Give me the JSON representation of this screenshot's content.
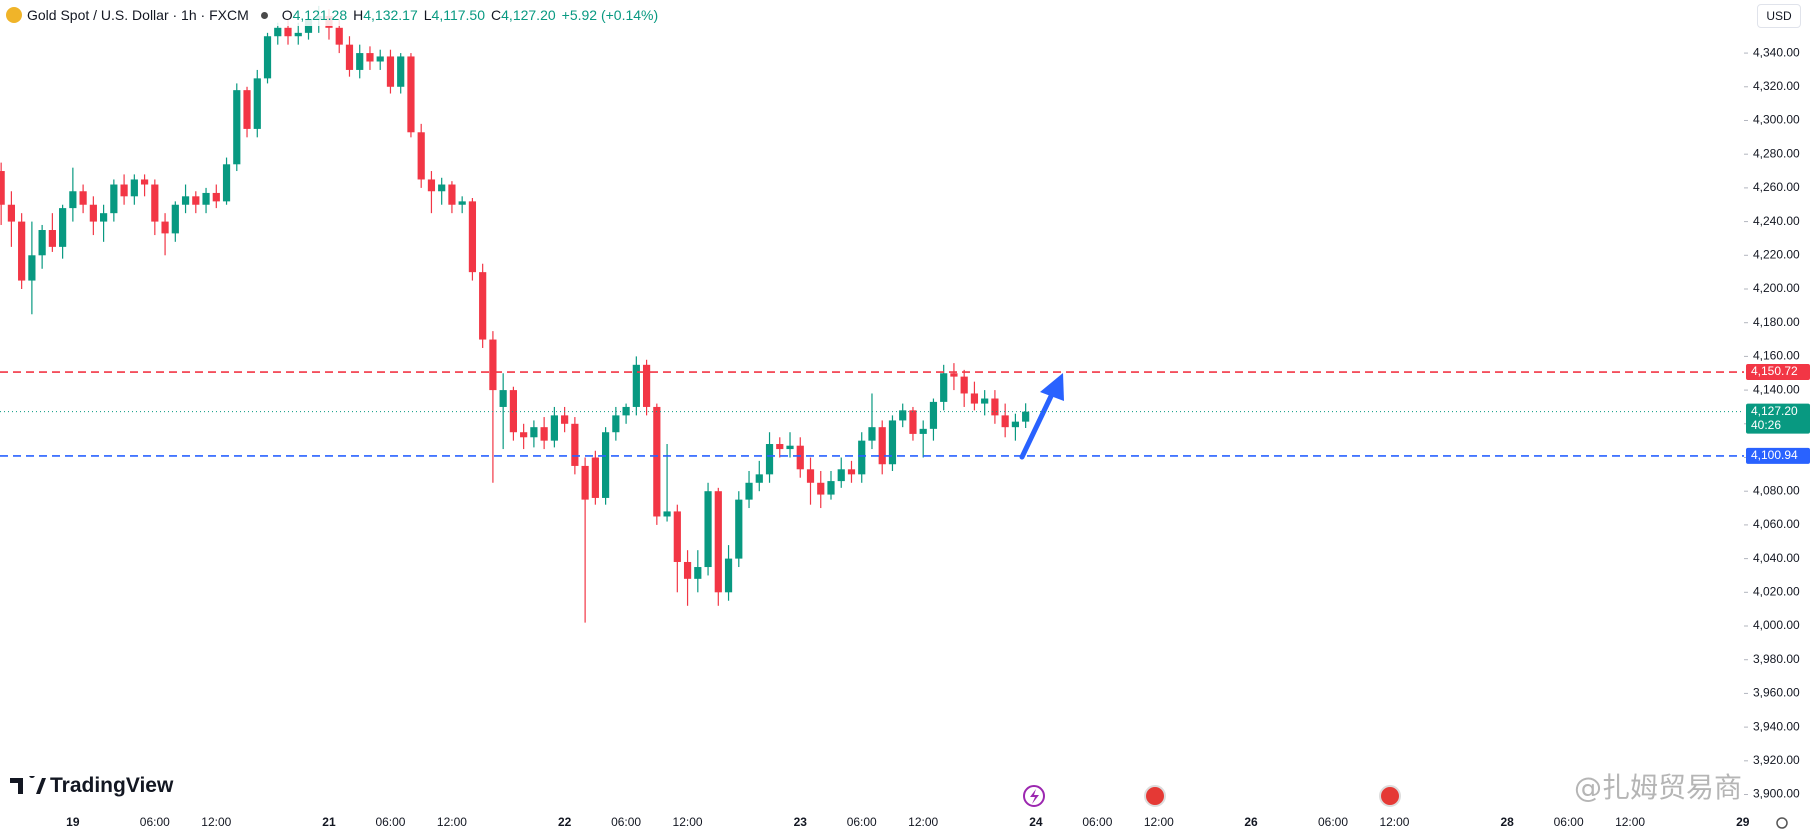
{
  "header": {
    "symbol": "Gold Spot / U.S. Dollar · 1h · FXCM",
    "open_label": "O",
    "open": "4,121.28",
    "high_label": "H",
    "high": "4,132.17",
    "low_label": "L",
    "low": "4,117.50",
    "close_label": "C",
    "close": "4,127.20",
    "change": "+5.92 (+0.14%)",
    "currency": "USD"
  },
  "branding": {
    "logo": "TradingView",
    "watermark": "@扎姆贸易商"
  },
  "chart_data": {
    "type": "candlestick",
    "up_color": "#089981",
    "down_color": "#f23645",
    "categories": [
      null,
      null,
      null,
      null,
      null,
      null,
      null,
      "19",
      null,
      null,
      null,
      null,
      null,
      null,
      null,
      "06:00",
      null,
      null,
      null,
      null,
      null,
      "12:00",
      null,
      null,
      null,
      null,
      null,
      null,
      null,
      null,
      null,
      null,
      "21",
      null,
      null,
      null,
      null,
      null,
      "06:00",
      null,
      null,
      null,
      null,
      null,
      "12:00",
      null,
      null,
      null,
      null,
      null,
      null,
      null,
      null,
      null,
      null,
      "22",
      null,
      null,
      null,
      null,
      null,
      "06:00",
      null,
      null,
      null,
      null,
      null,
      "12:00",
      null,
      null,
      null,
      null,
      null,
      null,
      null,
      null,
      null,
      null,
      "23",
      null,
      null,
      null,
      null,
      null,
      "06:00",
      null,
      null,
      null,
      null,
      null,
      "12:00",
      null,
      null,
      null,
      null,
      null,
      null,
      null,
      null,
      null,
      null,
      "24",
      null,
      null,
      null,
      null,
      null,
      "06:00",
      null,
      null,
      null,
      null,
      null,
      "12:00",
      null,
      null,
      null,
      null,
      null,
      null,
      null,
      null,
      "26",
      null,
      null,
      null,
      null,
      null,
      null,
      null,
      "06:00",
      null,
      null,
      null,
      null,
      null,
      "12:00",
      null,
      null,
      null,
      null,
      null,
      null,
      null,
      null,
      null,
      null,
      "28",
      null,
      null,
      null,
      null,
      null,
      "06:00",
      null,
      null,
      null,
      null,
      null,
      "12:00",
      null,
      null,
      null,
      null,
      null,
      null,
      null,
      null,
      null,
      null,
      "29"
    ],
    "open": [
      4270,
      4250,
      4240,
      4205,
      4220,
      4235,
      4225,
      4248,
      4258,
      4250,
      4240,
      4245,
      4262,
      4255,
      4265,
      4262,
      4240,
      4233,
      4250,
      4255,
      4250,
      4257,
      4252,
      4274,
      4318,
      4295,
      4325,
      4350,
      4355,
      4350,
      4352,
      4360,
      4362,
      4355,
      4345,
      4330,
      4340,
      4335,
      4338,
      4320,
      4338,
      4293,
      4265,
      4258,
      4262,
      4250,
      4252,
      4210,
      4170,
      4130,
      4140,
      4115,
      4112,
      4118,
      4110,
      4125,
      4120,
      4095,
      4100,
      4076,
      4115,
      4125,
      4130,
      4155,
      4130,
      4065,
      4068,
      4038,
      4028,
      4035,
      4080,
      4020,
      4040,
      4075,
      4085,
      4090,
      4108,
      4105,
      4107,
      4093,
      4085,
      4078,
      4086,
      4093,
      4090,
      4110,
      4118,
      4096,
      4122,
      4128,
      4114,
      4117,
      4133,
      4150,
      4148,
      4138,
      4132,
      4135,
      4125,
      4118,
      4121.28,
      null,
      null,
      null,
      null,
      null,
      null,
      null,
      null,
      null,
      null,
      null,
      null,
      null,
      null,
      null,
      null,
      null,
      null,
      null,
      null,
      null,
      null,
      null,
      null,
      null,
      null,
      null,
      null,
      null,
      null,
      null,
      null,
      null,
      null,
      null,
      null,
      null,
      null,
      null,
      null,
      null,
      null,
      null,
      null,
      null,
      null,
      null,
      null,
      null,
      null,
      null,
      null,
      null,
      null,
      null,
      null,
      null,
      null,
      null,
      null,
      null,
      null,
      null,
      null,
      null,
      null,
      null,
      null,
      null,
      null
    ],
    "high": [
      4275,
      4258,
      4245,
      4240,
      4238,
      4245,
      4250,
      4272,
      4262,
      4255,
      4250,
      4265,
      4268,
      4268,
      4268,
      4265,
      4245,
      4252,
      4262,
      4258,
      4260,
      4262,
      4278,
      4322,
      4320,
      4330,
      4352,
      4358,
      4360,
      4358,
      4365,
      4368,
      4366,
      4360,
      4350,
      4345,
      4344,
      4342,
      4342,
      4340,
      4340,
      4298,
      4270,
      4266,
      4264,
      4255,
      4254,
      4215,
      4175,
      4150,
      4142,
      4120,
      4122,
      4124,
      4130,
      4130,
      4124,
      4100,
      4104,
      4118,
      4130,
      4132,
      4160,
      4158,
      4132,
      4108,
      4072,
      4045,
      4045,
      4085,
      4082,
      4048,
      4080,
      4092,
      4098,
      4115,
      4112,
      4115,
      4112,
      4100,
      4092,
      4092,
      4100,
      4098,
      4115,
      4138,
      4122,
      4125,
      4132,
      4130,
      4122,
      4135,
      4155,
      4156,
      4152,
      4145,
      4140,
      4140,
      4132,
      4126,
      4132.17,
      null,
      null,
      null,
      null,
      null,
      null,
      null,
      null,
      null,
      null,
      null,
      null,
      null,
      null,
      null,
      null,
      null,
      null,
      null,
      null,
      null,
      null,
      null,
      null,
      null,
      null,
      null,
      null,
      null,
      null,
      null,
      null,
      null,
      null,
      null,
      null,
      null,
      null,
      null,
      null,
      null,
      null,
      null,
      null,
      null,
      null,
      null,
      null,
      null,
      null,
      null,
      null,
      null,
      null,
      null,
      null,
      null,
      null,
      null,
      null,
      null,
      null,
      null,
      null,
      null,
      null,
      null,
      null,
      null,
      null
    ],
    "low": [
      4238,
      4225,
      4200,
      4185,
      4212,
      4222,
      4218,
      4240,
      4245,
      4232,
      4228,
      4240,
      4250,
      4250,
      4255,
      4232,
      4220,
      4228,
      4245,
      4245,
      4245,
      4248,
      4250,
      4270,
      4290,
      4290,
      4322,
      4345,
      4345,
      4345,
      4348,
      4352,
      4348,
      4340,
      4326,
      4325,
      4330,
      4330,
      4316,
      4316,
      4290,
      4260,
      4245,
      4250,
      4245,
      4245,
      4205,
      4165,
      4085,
      4105,
      4110,
      4105,
      4106,
      4105,
      4106,
      4115,
      4090,
      4002,
      4072,
      4072,
      4110,
      4120,
      4125,
      4125,
      4060,
      4062,
      4020,
      4012,
      4020,
      4030,
      4012,
      4015,
      4035,
      4070,
      4080,
      4085,
      4100,
      4100,
      4088,
      4072,
      4070,
      4075,
      4082,
      4085,
      4085,
      4105,
      4090,
      4092,
      4118,
      4110,
      4100,
      4110,
      4128,
      4140,
      4130,
      4128,
      4125,
      4120,
      4112,
      4110,
      4117.5,
      null,
      null,
      null,
      null,
      null,
      null,
      null,
      null,
      null,
      null,
      null,
      null,
      null,
      null,
      null,
      null,
      null,
      null,
      null,
      null,
      null,
      null,
      null,
      null,
      null,
      null,
      null,
      null,
      null,
      null,
      null,
      null,
      null,
      null,
      null,
      null,
      null,
      null,
      null,
      null,
      null,
      null,
      null,
      null,
      null,
      null,
      null,
      null,
      null,
      null,
      null,
      null,
      null,
      null,
      null,
      null,
      null,
      null,
      null,
      null,
      null,
      null,
      null,
      null,
      null,
      null,
      null,
      null,
      null,
      null
    ],
    "close": [
      4250,
      4240,
      4205,
      4220,
      4235,
      4225,
      4248,
      4258,
      4250,
      4240,
      4245,
      4262,
      4255,
      4265,
      4262,
      4240,
      4233,
      4250,
      4255,
      4250,
      4257,
      4252,
      4274,
      4318,
      4295,
      4325,
      4350,
      4355,
      4350,
      4352,
      4360,
      4362,
      4355,
      4345,
      4330,
      4340,
      4335,
      4338,
      4320,
      4338,
      4293,
      4265,
      4258,
      4262,
      4250,
      4252,
      4210,
      4170,
      4140,
      4140,
      4115,
      4112,
      4118,
      4110,
      4125,
      4120,
      4095,
      4075,
      4076,
      4115,
      4125,
      4130,
      4155,
      4130,
      4065,
      4068,
      4038,
      4028,
      4035,
      4080,
      4020,
      4040,
      4075,
      4085,
      4090,
      4108,
      4105,
      4107,
      4093,
      4085,
      4078,
      4086,
      4093,
      4090,
      4110,
      4118,
      4096,
      4122,
      4128,
      4114,
      4117,
      4133,
      4150,
      4148,
      4138,
      4132,
      4135,
      4125,
      4118,
      4121.28,
      4127.2,
      null,
      null,
      null,
      null,
      null,
      null,
      null,
      null,
      null,
      null,
      null,
      null,
      null,
      null,
      null,
      null,
      null,
      null,
      null,
      null,
      null,
      null,
      null,
      null,
      null,
      null,
      null,
      null,
      null,
      null,
      null,
      null,
      null,
      null,
      null,
      null,
      null,
      null,
      null,
      null,
      null,
      null,
      null,
      null,
      null,
      null,
      null,
      null,
      null,
      null,
      null,
      null,
      null,
      null,
      null,
      null,
      null,
      null,
      null,
      null,
      null,
      null,
      null,
      null,
      null,
      null,
      null,
      null,
      null,
      null
    ],
    "ylim": [
      3892,
      4371.5
    ],
    "yticks": [
      {
        "value": 3900,
        "label": "3,900.00"
      },
      {
        "value": 3920,
        "label": "3,920.00"
      },
      {
        "value": 3940,
        "label": "3,940.00"
      },
      {
        "value": 3960,
        "label": "3,960.00"
      },
      {
        "value": 3980,
        "label": "3,980.00"
      },
      {
        "value": 4000,
        "label": "4,000.00"
      },
      {
        "value": 4020,
        "label": "4,020.00"
      },
      {
        "value": 4040,
        "label": "4,040.00"
      },
      {
        "value": 4060,
        "label": "4,060.00"
      },
      {
        "value": 4080,
        "label": "4,080.00"
      },
      {
        "value": 4100,
        "label": "4,100.00"
      },
      {
        "value": 4120,
        "label": "4,120.00"
      },
      {
        "value": 4140,
        "label": "4,140.00"
      },
      {
        "value": 4160,
        "label": "4,160.00"
      },
      {
        "value": 4180,
        "label": "4,180.00"
      },
      {
        "value": 4200,
        "label": "4,200.00"
      },
      {
        "value": 4220,
        "label": "4,220.00"
      },
      {
        "value": 4240,
        "label": "4,240.00"
      },
      {
        "value": 4260,
        "label": "4,260.00"
      },
      {
        "value": 4280,
        "label": "4,280.00"
      },
      {
        "value": 4300,
        "label": "4,300.00"
      },
      {
        "value": 4320,
        "label": "4,320.00"
      },
      {
        "value": 4340,
        "label": "4,340.00"
      }
    ],
    "lines": [
      {
        "value": 4150.72,
        "label": "4,150.72",
        "color": "#f23645",
        "style": "dashed"
      },
      {
        "value": 4100.94,
        "label": "4,100.94",
        "color": "#2962ff",
        "style": "dashed"
      },
      {
        "value": 4127.2,
        "label": "4,127.20",
        "sublabel": "40:26",
        "color": "#089981",
        "style": "dotted"
      }
    ]
  }
}
